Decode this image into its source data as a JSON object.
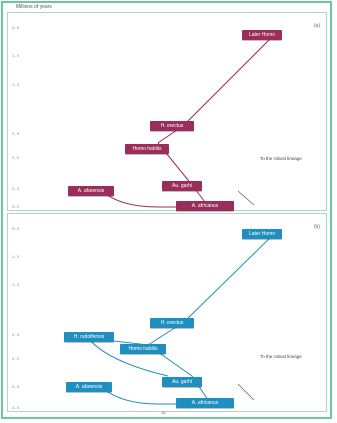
{
  "header_label": "Millions of years",
  "panel_a": {
    "letter": "(a)",
    "ticks": [
      "0.0",
      "1.5",
      "1.0",
      "2.0",
      "2.5",
      "3.0",
      "3.5"
    ],
    "nodes": {
      "latest": "Later Homo",
      "erectus": "H. erectus",
      "habilis": "Homo habilis",
      "garhi": "Au. garhi",
      "afarensis_left": "A. afarensis",
      "africanus": "A. africanus"
    },
    "note": "To the robust lineage"
  },
  "panel_b": {
    "letter": "(b)",
    "ticks": [
      "0.0",
      "1.5",
      "1.0",
      "2.0",
      "2.5",
      "3.0",
      "3.5"
    ],
    "nodes": {
      "latest": "Later Homo",
      "erectus": "H. erectus",
      "rudolfensis": "H. rudolfensis",
      "habilis": "Homo habilis",
      "garhi": "Au. garhi",
      "afarensis_left": "A. afarensis",
      "africanus": "A. africanus"
    },
    "note": "To the robust lineage"
  },
  "colors": {
    "panel_a": "#9b2d5a",
    "panel_b": "#1f8fc0",
    "border": "#6cc79a"
  },
  "footer": "16"
}
